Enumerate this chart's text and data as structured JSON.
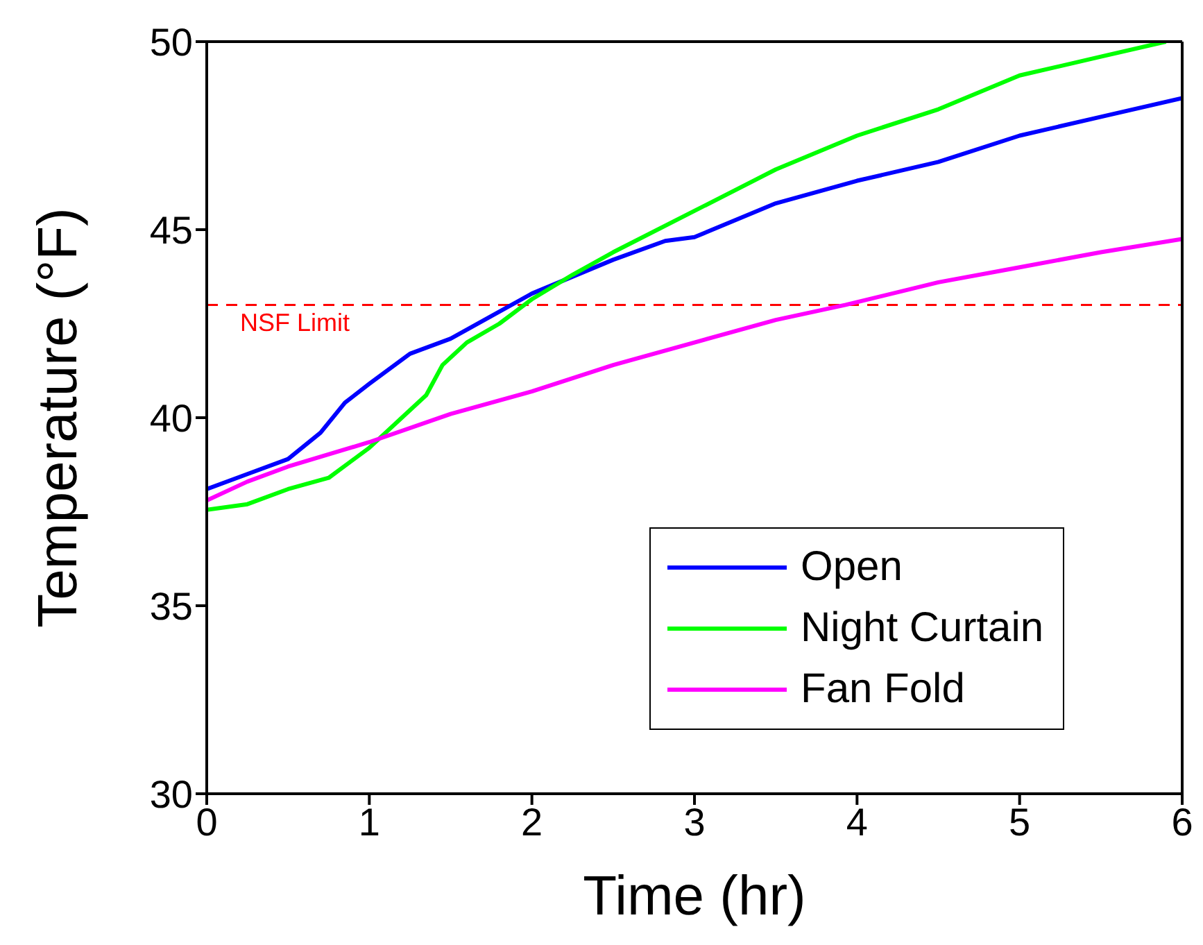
{
  "chart_data": {
    "type": "line",
    "xlabel": "Time (hr)",
    "ylabel": "Temperature (°F)",
    "xlim": [
      0,
      6
    ],
    "ylim": [
      30,
      50
    ],
    "xticks": [
      0,
      1,
      2,
      3,
      4,
      5,
      6
    ],
    "yticks": [
      30,
      35,
      40,
      45,
      50
    ],
    "grid": false,
    "legend": "bottom right",
    "marker": "none",
    "line_style": "solid",
    "ref_lines": [
      {
        "axis": "y",
        "value": 43,
        "label": "NSF Limit",
        "color": "#ff0000",
        "line_style": "dashed"
      }
    ],
    "series": [
      {
        "name": "Open",
        "color": "#0000ff",
        "x": [
          0,
          0.25,
          0.5,
          0.7,
          0.85,
          1,
          1.25,
          1.5,
          1.75,
          2,
          2.5,
          2.82,
          3,
          3.5,
          4,
          4.5,
          5,
          5.5,
          6
        ],
        "values": [
          38.1,
          38.5,
          38.9,
          39.6,
          40.4,
          40.9,
          41.7,
          42.1,
          42.7,
          43.3,
          44.2,
          44.7,
          44.8,
          45.7,
          46.3,
          46.8,
          47.5,
          48.0,
          48.5
        ]
      },
      {
        "name": "Night Curtain",
        "color": "#00ff00",
        "x": [
          0,
          0.25,
          0.5,
          0.75,
          1,
          1.2,
          1.35,
          1.45,
          1.6,
          1.8,
          2,
          2.25,
          2.5,
          3,
          3.5,
          4,
          4.5,
          5,
          5.5,
          5.9
        ],
        "values": [
          37.55,
          37.7,
          38.1,
          38.4,
          39.2,
          40.0,
          40.6,
          41.4,
          42.0,
          42.5,
          43.15,
          43.8,
          44.4,
          45.5,
          46.6,
          47.5,
          48.2,
          49.1,
          49.6,
          50.0
        ]
      },
      {
        "name": "Fan Fold",
        "color": "#ff00ff",
        "x": [
          0,
          0.25,
          0.5,
          1,
          1.5,
          2,
          2.5,
          3,
          3.5,
          3.93,
          4.5,
          5,
          5.5,
          6
        ],
        "values": [
          37.8,
          38.3,
          38.7,
          39.35,
          40.1,
          40.7,
          41.4,
          42.0,
          42.6,
          43.0,
          43.6,
          44.0,
          44.4,
          44.75
        ]
      }
    ]
  }
}
